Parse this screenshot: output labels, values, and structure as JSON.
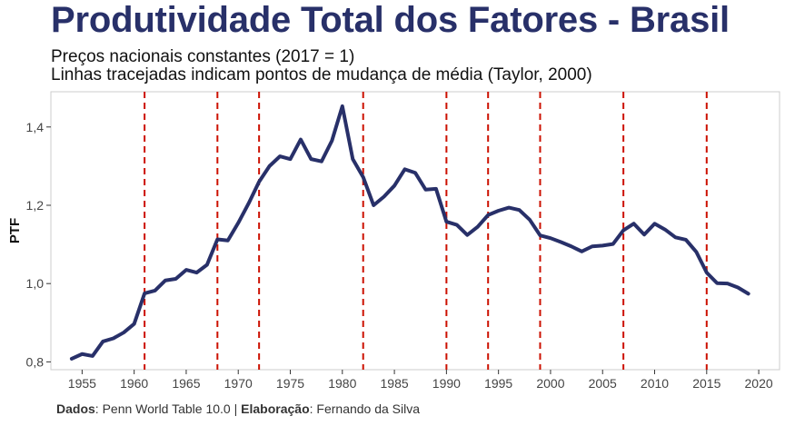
{
  "header": {
    "title": "Produtividade Total dos Fatores - Brasil",
    "subtitle_line1": "Preços nacionais constantes (2017 = 1)",
    "subtitle_line2": "Linhas tracejadas indicam pontos de mudança de média (Taylor, 2000)"
  },
  "caption": {
    "source_label": "Dados",
    "source_text": ": Penn World Table 10.0 | ",
    "author_label": "Elaboração",
    "author_text": ": Fernando da Silva"
  },
  "chart_data": {
    "type": "line",
    "title": "Produtividade Total dos Fatores - Brasil",
    "ylabel": "PTF",
    "xlabel": "",
    "xlim": [
      1952,
      2022
    ],
    "ylim": [
      0.78,
      1.49
    ],
    "x_ticks": [
      1955,
      1960,
      1965,
      1970,
      1975,
      1980,
      1985,
      1990,
      1995,
      2000,
      2005,
      2010,
      2015,
      2020
    ],
    "y_ticks": [
      0.8,
      1.0,
      1.2,
      1.4
    ],
    "y_tick_labels": [
      "0,8",
      "1,0",
      "1,2",
      "1,4"
    ],
    "grid": false,
    "line_color": "#283069",
    "changepoint_color": "#cc1100",
    "changepoints": [
      1961,
      1968,
      1972,
      1982,
      1990,
      1994,
      1999,
      2007,
      2015
    ],
    "series": [
      {
        "x": [
          1954,
          1955,
          1956,
          1957,
          1958,
          1959,
          1960,
          1961,
          1962,
          1963,
          1964,
          1965,
          1966,
          1967,
          1968,
          1969,
          1970,
          1971,
          1972,
          1973,
          1974,
          1975,
          1976,
          1977,
          1978,
          1979,
          1980,
          1981,
          1982,
          1983,
          1984,
          1985,
          1986,
          1987,
          1988,
          1989,
          1990,
          1991,
          1992,
          1993,
          1994,
          1995,
          1996,
          1997,
          1998,
          1999,
          2000,
          2001,
          2002,
          2003,
          2004,
          2005,
          2006,
          2007,
          2008,
          2009,
          2010,
          2011,
          2012,
          2013,
          2014,
          2015,
          2016,
          2017,
          2018,
          2019
        ],
        "y": [
          0.808,
          0.82,
          0.815,
          0.852,
          0.86,
          0.875,
          0.897,
          0.975,
          0.982,
          1.008,
          1.012,
          1.035,
          1.028,
          1.048,
          1.113,
          1.11,
          1.155,
          1.205,
          1.26,
          1.3,
          1.325,
          1.318,
          1.368,
          1.318,
          1.312,
          1.365,
          1.453,
          1.318,
          1.272,
          1.2,
          1.222,
          1.25,
          1.292,
          1.283,
          1.24,
          1.242,
          1.158,
          1.15,
          1.124,
          1.145,
          1.175,
          1.186,
          1.194,
          1.188,
          1.163,
          1.123,
          1.116,
          1.106,
          1.095,
          1.082,
          1.095,
          1.097,
          1.101,
          1.136,
          1.153,
          1.125,
          1.153,
          1.138,
          1.118,
          1.112,
          1.081,
          1.028,
          1.001,
          1.0,
          0.99,
          0.974
        ]
      }
    ]
  }
}
